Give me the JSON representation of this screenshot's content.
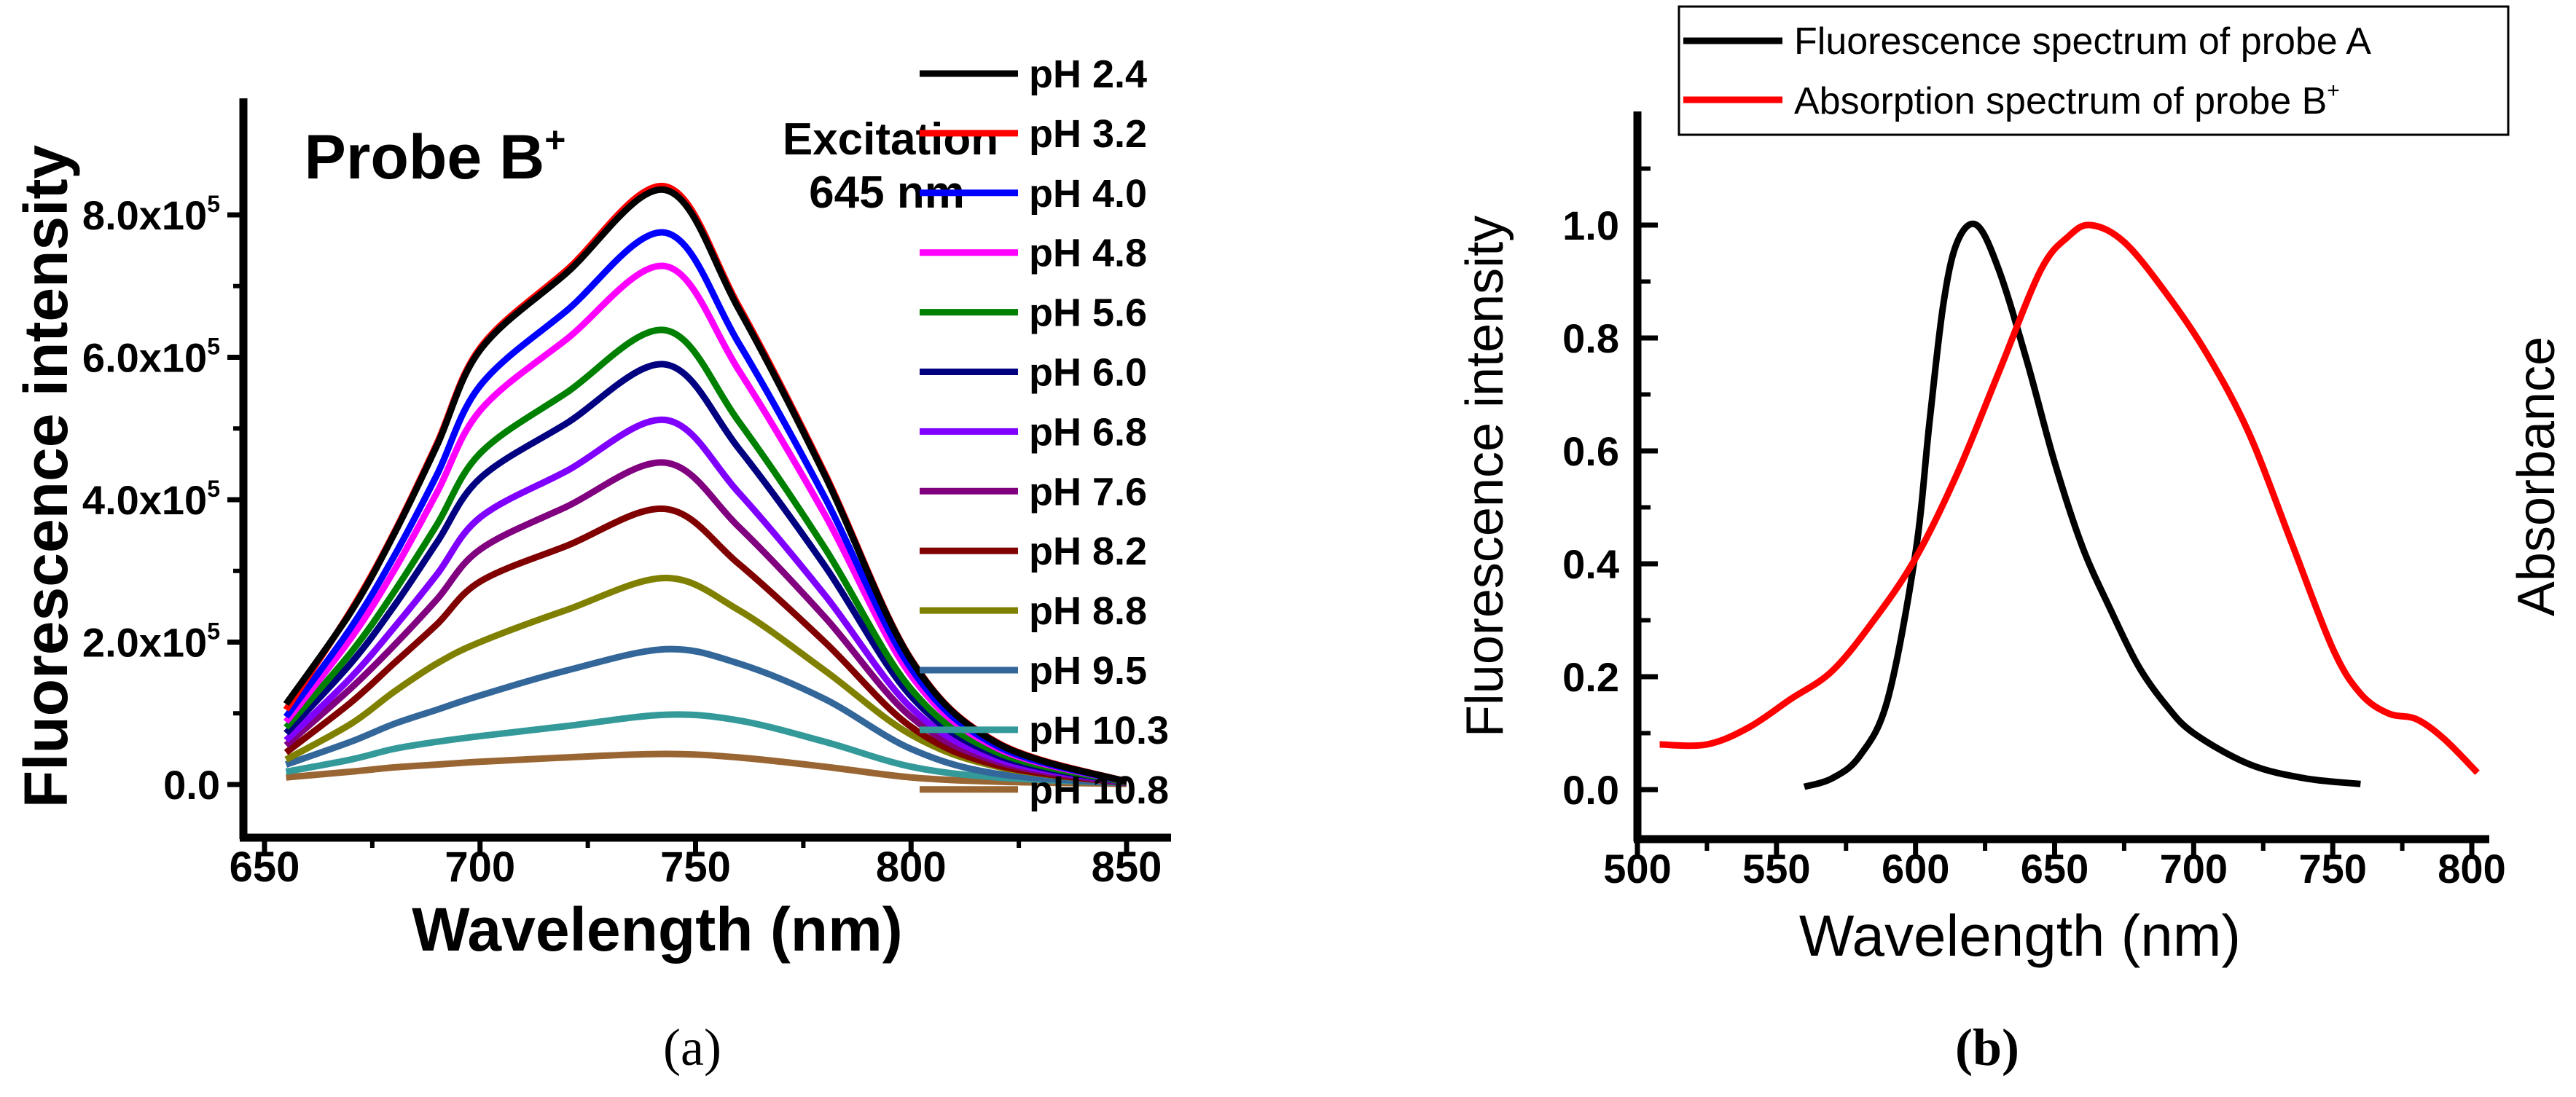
{
  "chart_data": [
    {
      "type": "line",
      "panel_label": "(a)",
      "title": "",
      "annotation_probe": "Probe B",
      "annotation_probe_sup": "+",
      "annotation_excitation_1": "Excitation",
      "annotation_excitation_2": "645 nm",
      "xlabel": "Wavelength (nm)",
      "ylabel": "Fluorescence intensity",
      "xlim": [
        640,
        860
      ],
      "ylim": [
        -0.3,
        9.1
      ],
      "y_unit_multiplier": 100000,
      "x_ticks": [
        650,
        700,
        750,
        800,
        850
      ],
      "x_tick_labels": [
        "650",
        "700",
        "750",
        "800",
        "850"
      ],
      "y_ticks": [
        0,
        2,
        4,
        6,
        8
      ],
      "y_tick_labels": [
        {
          "base": "0.0",
          "sup": ""
        },
        {
          "base": "2.0x10",
          "sup": "5"
        },
        {
          "base": "4.0x10",
          "sup": "5"
        },
        {
          "base": "6.0x10",
          "sup": "5"
        },
        {
          "base": "8.0x10",
          "sup": "5"
        }
      ],
      "grid": false,
      "legend_position": "right-outside",
      "x": [
        655,
        670,
        680,
        690,
        700,
        720,
        743,
        760,
        780,
        800,
        820,
        850
      ],
      "series": [
        {
          "name": "pH 2.4",
          "color": "#000000",
          "values": [
            1.13,
            2.42,
            3.51,
            4.76,
            6.1,
            7.18,
            8.35,
            6.68,
            4.34,
            1.75,
            0.58,
            0.04
          ]
        },
        {
          "name": "pH 3.2",
          "color": "#ff0000",
          "values": [
            1.05,
            2.44,
            3.53,
            4.79,
            6.13,
            7.22,
            8.4,
            6.72,
            4.37,
            1.76,
            0.59,
            0.04
          ]
        },
        {
          "name": "pH 4.0",
          "color": "#0000ff",
          "values": [
            0.95,
            2.2,
            3.2,
            4.35,
            5.6,
            6.65,
            7.75,
            6.2,
            4.03,
            1.63,
            0.54,
            0.04
          ]
        },
        {
          "name": "pH 4.8",
          "color": "#ff00ff",
          "values": [
            0.88,
            2.05,
            3.0,
            4.1,
            5.25,
            6.25,
            7.28,
            5.82,
            3.79,
            1.53,
            0.51,
            0.04
          ]
        },
        {
          "name": "pH 5.6",
          "color": "#008000",
          "values": [
            0.8,
            1.85,
            2.7,
            3.65,
            4.65,
            5.5,
            6.38,
            5.1,
            3.32,
            1.34,
            0.45,
            0.03
          ]
        },
        {
          "name": "pH 6.0",
          "color": "#000080",
          "values": [
            0.72,
            1.7,
            2.5,
            3.4,
            4.3,
            5.07,
            5.9,
            4.72,
            3.07,
            1.24,
            0.41,
            0.03
          ]
        },
        {
          "name": "pH 6.8",
          "color": "#8000ff",
          "values": [
            0.62,
            1.5,
            2.2,
            2.95,
            3.75,
            4.4,
            5.12,
            4.1,
            2.66,
            1.08,
            0.36,
            0.03
          ]
        },
        {
          "name": "pH 7.6",
          "color": "#800080",
          "values": [
            0.55,
            1.35,
            1.95,
            2.6,
            3.3,
            3.9,
            4.52,
            3.62,
            2.35,
            0.95,
            0.32,
            0.02
          ]
        },
        {
          "name": "pH 8.2",
          "color": "#800000",
          "values": [
            0.45,
            1.15,
            1.7,
            2.25,
            2.85,
            3.35,
            3.87,
            3.1,
            2.0,
            0.81,
            0.27,
            0.02
          ]
        },
        {
          "name": "pH 8.8",
          "color": "#808000",
          "values": [
            0.35,
            0.85,
            1.3,
            1.7,
            2.0,
            2.45,
            2.9,
            2.45,
            1.6,
            0.7,
            0.25,
            0.02
          ]
        },
        {
          "name": "pH 9.5",
          "color": "#336699",
          "values": [
            0.28,
            0.6,
            0.85,
            1.05,
            1.25,
            1.6,
            1.9,
            1.7,
            1.2,
            0.5,
            0.15,
            0.02
          ]
        },
        {
          "name": "pH 10.3",
          "color": "#339999",
          "values": [
            0.18,
            0.35,
            0.5,
            0.6,
            0.68,
            0.82,
            0.98,
            0.9,
            0.6,
            0.25,
            0.1,
            0.02
          ]
        },
        {
          "name": "pH 10.8",
          "color": "#996633",
          "values": [
            0.1,
            0.18,
            0.24,
            0.28,
            0.32,
            0.38,
            0.43,
            0.38,
            0.25,
            0.1,
            0.04,
            0.01
          ]
        }
      ]
    },
    {
      "type": "line",
      "panel_label": "(b)",
      "title": "",
      "xlabel": "Wavelength (nm)",
      "ylabel": "Fluorescence intensity",
      "ylabel_right": "Absorbance",
      "xlim": [
        500,
        805
      ],
      "ylim": [
        -0.01,
        1.1
      ],
      "x_ticks": [
        500,
        550,
        600,
        650,
        700,
        750,
        800
      ],
      "x_tick_labels": [
        "500",
        "550",
        "600",
        "650",
        "700",
        "750",
        "800"
      ],
      "y_ticks": [
        0,
        0.2,
        0.4,
        0.6,
        0.8,
        1.0
      ],
      "y_tick_labels": [
        "0.0",
        "0.2",
        "0.4",
        "0.6",
        "0.8",
        "1.0"
      ],
      "grid": false,
      "legend_position": "top-right",
      "series": [
        {
          "name": "Fluorescence spectrum of probe A",
          "name_sup": "",
          "color": "#000000",
          "x": [
            560,
            570,
            580,
            590,
            600,
            605,
            610,
            615,
            622,
            630,
            640,
            650,
            660,
            670,
            680,
            690,
            700,
            720,
            740,
            760
          ],
          "values": [
            0.005,
            0.02,
            0.06,
            0.16,
            0.42,
            0.65,
            0.86,
            0.97,
            1.0,
            0.92,
            0.76,
            0.58,
            0.43,
            0.32,
            0.22,
            0.15,
            0.1,
            0.045,
            0.02,
            0.01
          ]
        },
        {
          "name": "Absorption spectrum of probe B",
          "name_sup": "+",
          "color": "#ff0000",
          "x": [
            508,
            525,
            540,
            555,
            570,
            585,
            600,
            615,
            630,
            645,
            655,
            663,
            675,
            690,
            705,
            720,
            735,
            750,
            760,
            770,
            780,
            790,
            802
          ],
          "values": [
            0.08,
            0.08,
            0.11,
            0.16,
            0.21,
            0.3,
            0.41,
            0.56,
            0.74,
            0.92,
            0.98,
            1.0,
            0.97,
            0.88,
            0.77,
            0.63,
            0.44,
            0.25,
            0.17,
            0.135,
            0.125,
            0.09,
            0.03
          ]
        }
      ]
    }
  ]
}
